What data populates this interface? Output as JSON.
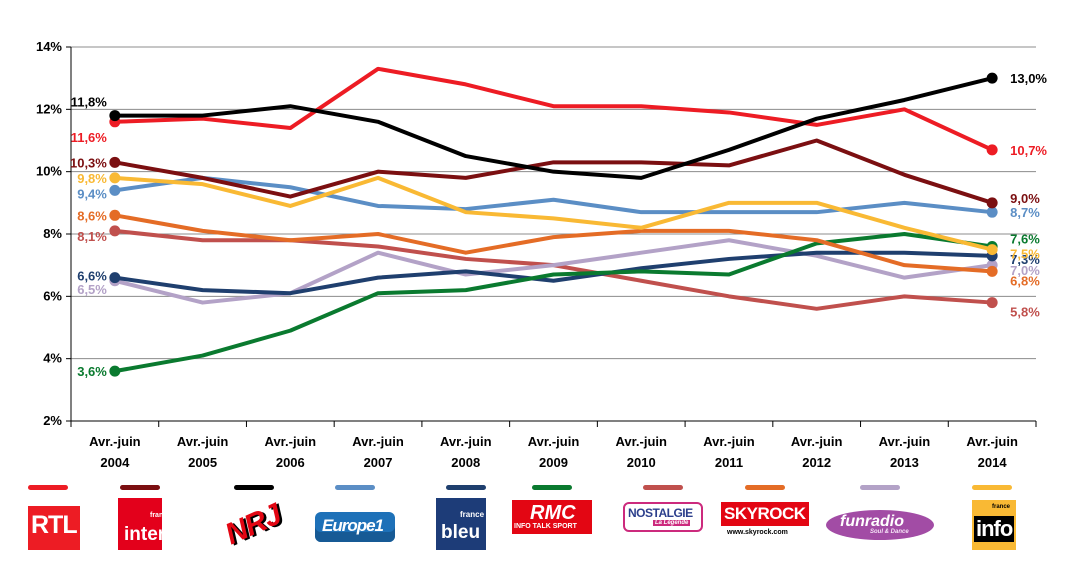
{
  "chart_data": {
    "type": "line",
    "categories": [
      {
        "line1": "Avr.-juin",
        "line2": "2004"
      },
      {
        "line1": "Avr.-juin",
        "line2": "2005"
      },
      {
        "line1": "Avr.-juin",
        "line2": "2006"
      },
      {
        "line1": "Avr.-juin",
        "line2": "2007"
      },
      {
        "line1": "Avr.-juin",
        "line2": "2008"
      },
      {
        "line1": "Avr.-juin",
        "line2": "2009"
      },
      {
        "line1": "Avr.-juin",
        "line2": "2010"
      },
      {
        "line1": "Avr.-juin",
        "line2": "2011"
      },
      {
        "line1": "Avr.-juin",
        "line2": "2012"
      },
      {
        "line1": "Avr.-juin",
        "line2": "2013"
      },
      {
        "line1": "Avr.-juin",
        "line2": "2014"
      }
    ],
    "ylim": [
      2,
      14
    ],
    "yticks": [
      {
        "value": 2,
        "label": "2%"
      },
      {
        "value": 4,
        "label": "4%"
      },
      {
        "value": 6,
        "label": "6%"
      },
      {
        "value": 8,
        "label": "8%"
      },
      {
        "value": 10,
        "label": "10%"
      },
      {
        "value": 12,
        "label": "12%"
      },
      {
        "value": 14,
        "label": "14%"
      }
    ],
    "grid": true,
    "series": [
      {
        "name": "RTL",
        "color": "#ed1c24",
        "values": [
          11.6,
          11.7,
          11.4,
          13.3,
          12.8,
          12.1,
          12.1,
          11.9,
          11.5,
          12.0,
          10.7
        ],
        "start_label": "11,6%",
        "end_label": "10,7%"
      },
      {
        "name": "France Inter",
        "color": "#7b0f11",
        "values": [
          10.3,
          9.8,
          9.2,
          10.0,
          9.8,
          10.3,
          10.3,
          10.2,
          11.0,
          9.9,
          9.0
        ],
        "start_label": "10,3%",
        "end_label": "9,0%"
      },
      {
        "name": "NRJ",
        "color": "#000000",
        "values": [
          11.8,
          11.8,
          12.1,
          11.6,
          10.5,
          10.0,
          9.8,
          10.7,
          11.7,
          12.3,
          13.0
        ],
        "start_label": "11,8%",
        "end_label": "13,0%"
      },
      {
        "name": "Europe 1",
        "color": "#5b8ec5",
        "values": [
          9.4,
          9.8,
          9.5,
          8.9,
          8.8,
          9.1,
          8.7,
          8.7,
          8.7,
          9.0,
          8.7
        ],
        "start_label": "9,4%",
        "end_label": "8,7%"
      },
      {
        "name": "France Bleu",
        "color": "#1f3f6e",
        "values": [
          6.6,
          6.2,
          6.1,
          6.6,
          6.8,
          6.5,
          6.9,
          7.2,
          7.4,
          7.4,
          7.3
        ],
        "start_label": "6,6%",
        "end_label": "7,3%"
      },
      {
        "name": "RMC",
        "color": "#0a7a2f",
        "values": [
          3.6,
          4.1,
          4.9,
          6.1,
          6.2,
          6.7,
          6.8,
          6.7,
          7.7,
          8.0,
          7.6
        ],
        "start_label": "3,6%",
        "end_label": "7,6%"
      },
      {
        "name": "Nostalgie",
        "color": "#c0504d",
        "values": [
          8.1,
          7.8,
          7.8,
          7.6,
          7.2,
          7.0,
          6.5,
          6.0,
          5.6,
          6.0,
          5.8
        ],
        "start_label": "8,1%",
        "end_label": "5,8%"
      },
      {
        "name": "Skyrock",
        "color": "#e46c26",
        "values": [
          8.6,
          8.1,
          7.8,
          8.0,
          7.4,
          7.9,
          8.1,
          8.1,
          7.8,
          7.0,
          6.8
        ],
        "start_label": "8,6%",
        "end_label": "6,8%"
      },
      {
        "name": "Fun Radio",
        "color": "#b3a2c7",
        "values": [
          6.5,
          5.8,
          6.1,
          7.4,
          6.7,
          7.0,
          7.4,
          7.8,
          7.3,
          6.6,
          7.0
        ],
        "start_label": "6,5%",
        "end_label": "7,0%"
      },
      {
        "name": "France Info",
        "color": "#f9b934",
        "values": [
          9.8,
          9.6,
          8.9,
          9.8,
          8.7,
          8.5,
          8.2,
          9.0,
          9.0,
          8.2,
          7.5
        ],
        "start_label": "9,8%",
        "end_label": "7,5%"
      }
    ]
  },
  "legend": {
    "logos": [
      {
        "series": "RTL",
        "color": "#ed1c24",
        "text": "RTL"
      },
      {
        "series": "France Inter",
        "color": "#7b0f11",
        "text": "inter",
        "sub": "france"
      },
      {
        "series": "NRJ",
        "color": "#000000",
        "text": "NRJ"
      },
      {
        "series": "Europe 1",
        "color": "#5b8ec5",
        "text": "Europe1"
      },
      {
        "series": "France Bleu",
        "color": "#1f3f6e",
        "text": "bleu",
        "sub": "france"
      },
      {
        "series": "RMC",
        "color": "#0a7a2f",
        "text": "RMC",
        "sub": "INFO TALK SPORT"
      },
      {
        "series": "Nostalgie",
        "color": "#c0504d",
        "text": "NOSTALGIE",
        "sub": "La Légende"
      },
      {
        "series": "Skyrock",
        "color": "#e46c26",
        "text": "SKYROCK",
        "sub": "www.skyrock.com"
      },
      {
        "series": "Fun Radio",
        "color": "#b3a2c7",
        "text": "funradio",
        "sub": "Soul & Dance"
      },
      {
        "series": "France Info",
        "color": "#f9b934",
        "text": "info",
        "sub": "france"
      }
    ]
  }
}
